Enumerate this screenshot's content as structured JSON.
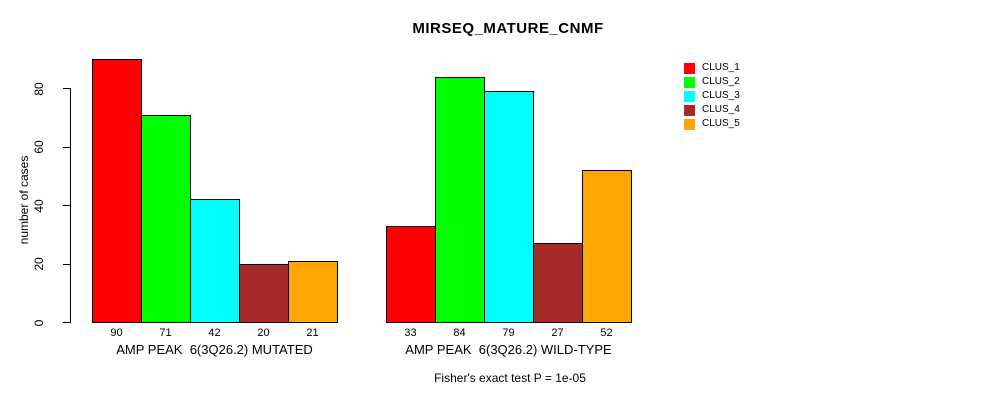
{
  "chart_data": {
    "type": "bar",
    "title": "MIRSEQ_MATURE_CNMF",
    "ylabel": "number of cases",
    "xlabel": "",
    "ylim": [
      0,
      90
    ],
    "yticks": [
      0,
      20,
      40,
      60,
      80
    ],
    "grid": false,
    "legend_position": "right",
    "categories": [
      "AMP PEAK  6(3Q26.2) MUTATED",
      "AMP PEAK  6(3Q26.2) WILD-TYPE"
    ],
    "series": [
      {
        "name": "CLUS_1",
        "color": "#ff0000",
        "values": [
          90,
          33
        ]
      },
      {
        "name": "CLUS_2",
        "color": "#00ff00",
        "values": [
          71,
          84
        ]
      },
      {
        "name": "CLUS_3",
        "color": "#00ffff",
        "values": [
          42,
          79
        ]
      },
      {
        "name": "CLUS_4",
        "color": "#a52a2a",
        "values": [
          20,
          27
        ]
      },
      {
        "name": "CLUS_5",
        "color": "#ffa500",
        "values": [
          21,
          52
        ]
      }
    ],
    "bar_value_labels": [
      [
        90,
        71,
        42,
        20,
        21
      ],
      [
        33,
        84,
        79,
        27,
        52
      ]
    ],
    "annotation": "Fisher's exact test P = 1e-05",
    "colors": {
      "axis": "#000000",
      "bar_border": "#000000",
      "text": "#000000",
      "background": "#ffffff"
    }
  }
}
